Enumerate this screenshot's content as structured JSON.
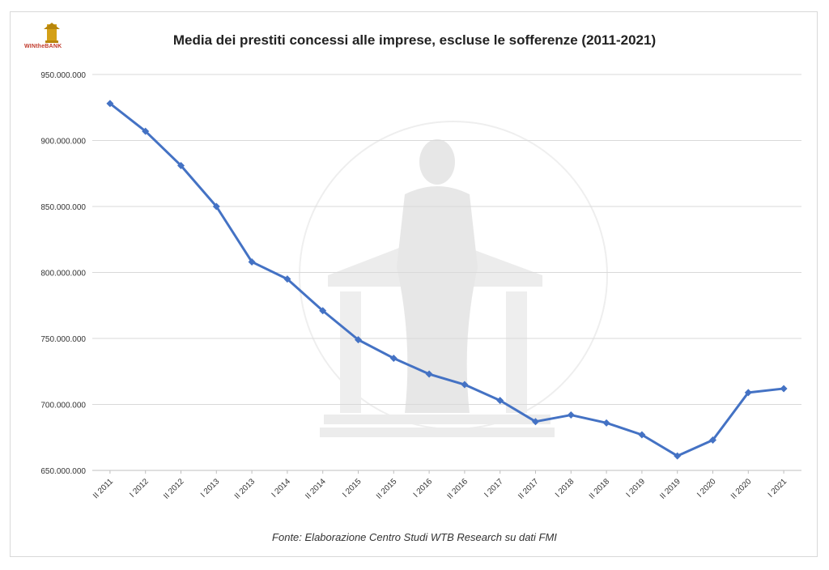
{
  "logo": {
    "text": "WINtheBANK"
  },
  "chart_data": {
    "type": "line",
    "title": "Media dei prestiti concessi alle imprese, escluse le sofferenze (2011-2021)",
    "source": "Fonte: Elaborazione Centro Studi WTB Research su dati FMI",
    "categories": [
      "II 2011",
      "I 2012",
      "II 2012",
      "I 2013",
      "II 2013",
      "I 2014",
      "II 2014",
      "I 2015",
      "II 2015",
      "I 2016",
      "II 2016",
      "I 2017",
      "II 2017",
      "I 2018",
      "II 2018",
      "I 2019",
      "II 2019",
      "I 2020",
      "II 2020",
      "I 2021"
    ],
    "series": [
      {
        "values": [
          928000000,
          907000000,
          881000000,
          850000000,
          808000000,
          795000000,
          771000000,
          749000000,
          735000000,
          723000000,
          715000000,
          703000000,
          687000000,
          692000000,
          686000000,
          677000000,
          661000000,
          673000000,
          709000000,
          712000000
        ]
      }
    ],
    "y_ticks": [
      "650.000.000",
      "700.000.000",
      "750.000.000",
      "800.000.000",
      "850.000.000",
      "900.000.000",
      "950.000.000"
    ],
    "y_tick_values": [
      650000000,
      700000000,
      750000000,
      800000000,
      850000000,
      900000000,
      950000000
    ],
    "ylim": [
      650000000,
      950000000
    ],
    "grid": true,
    "line_color": "#4472c4"
  }
}
